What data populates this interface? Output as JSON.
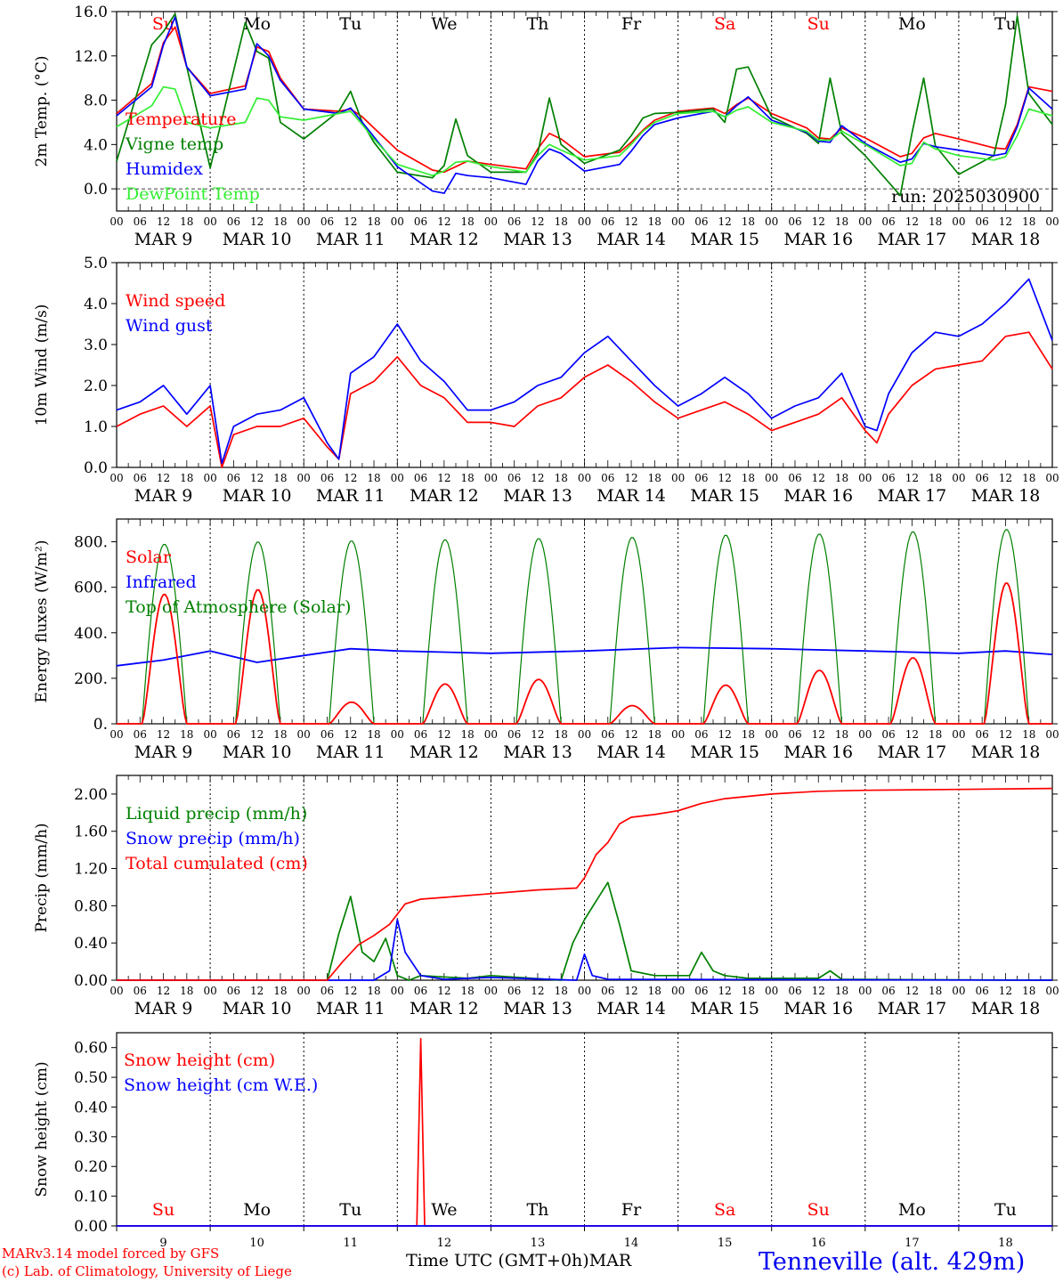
{
  "chart_data": [
    {
      "type": "line",
      "ylabel": "2m Temp. (°C)",
      "ylim": [
        -2,
        16
      ],
      "yticks": [
        "16.0",
        "12.0",
        "8.0",
        "4.0",
        "0.0"
      ],
      "run_label": "run: 2025030900",
      "x_hours": [
        0,
        9,
        12,
        15,
        18,
        24,
        33,
        36,
        39,
        42,
        48,
        57,
        60,
        63,
        66,
        72,
        81,
        84,
        87,
        90,
        96,
        105,
        108,
        111,
        114,
        120,
        129,
        132,
        135,
        138,
        144,
        153,
        156,
        159,
        162,
        168,
        177,
        180,
        183,
        186,
        192,
        201,
        204,
        207,
        210,
        216,
        225,
        228,
        231,
        234,
        240
      ],
      "series": [
        {
          "name": "Temperature",
          "color": "#ff0000",
          "values": [
            6.8,
            9.5,
            13.2,
            14.6,
            11.0,
            8.6,
            9.3,
            12.8,
            12.4,
            10.0,
            7.2,
            7.0,
            7.2,
            6.5,
            5.5,
            3.5,
            1.7,
            1.5,
            2.0,
            2.5,
            2.2,
            1.8,
            3.6,
            5.0,
            4.5,
            2.9,
            3.3,
            4.2,
            5.3,
            6.2,
            7.0,
            7.3,
            6.8,
            7.6,
            8.2,
            6.8,
            5.5,
            4.6,
            4.5,
            5.5,
            4.6,
            2.9,
            3.2,
            4.6,
            5.0,
            4.5,
            3.7,
            3.6,
            5.8,
            9.2,
            8.8
          ]
        },
        {
          "name": "Vigne temp",
          "color": "#008000",
          "values": [
            2.5,
            13.0,
            14.2,
            15.8,
            11.0,
            1.9,
            15.0,
            12.4,
            11.8,
            6.0,
            4.5,
            7.0,
            8.8,
            6.0,
            4.2,
            1.5,
            1.0,
            2.1,
            6.3,
            3.0,
            1.5,
            1.5,
            3.2,
            8.2,
            4.0,
            2.3,
            3.5,
            4.8,
            6.4,
            6.8,
            6.9,
            7.2,
            6.0,
            10.8,
            11.0,
            6.5,
            5.0,
            4.1,
            10.0,
            5.0,
            3.0,
            -0.6,
            5.0,
            10.0,
            3.9,
            1.3,
            3.0,
            7.6,
            15.6,
            8.6,
            5.8
          ]
        },
        {
          "name": "Humidex",
          "color": "#0000ff",
          "values": [
            6.6,
            9.2,
            13.0,
            15.5,
            11.0,
            8.4,
            9.0,
            13.1,
            12.0,
            9.8,
            7.2,
            6.8,
            7.3,
            6.0,
            4.7,
            2.0,
            -0.2,
            -0.4,
            1.4,
            1.2,
            1.0,
            0.4,
            2.5,
            3.6,
            3.2,
            1.6,
            2.2,
            3.4,
            4.8,
            5.8,
            6.4,
            7.0,
            6.5,
            7.5,
            8.3,
            6.2,
            5.1,
            4.3,
            4.2,
            5.7,
            4.1,
            2.4,
            2.7,
            4.1,
            3.8,
            3.5,
            3.0,
            3.2,
            5.6,
            9.1,
            7.2
          ]
        },
        {
          "name": "DewPoint Temp",
          "color": "#33ee33",
          "values": [
            5.6,
            7.5,
            9.2,
            9.0,
            6.0,
            5.5,
            6.0,
            8.2,
            8.0,
            6.5,
            6.2,
            6.8,
            7.0,
            5.8,
            4.5,
            2.2,
            1.2,
            1.6,
            2.4,
            2.5,
            2.0,
            1.5,
            3.0,
            4.0,
            3.5,
            2.6,
            3.0,
            4.0,
            5.2,
            6.0,
            6.8,
            7.0,
            6.5,
            7.1,
            7.4,
            6.0,
            5.2,
            4.4,
            4.4,
            5.2,
            4.0,
            2.1,
            2.3,
            4.2,
            3.6,
            3.0,
            2.6,
            2.9,
            4.8,
            7.2,
            6.6
          ]
        }
      ]
    },
    {
      "type": "line",
      "ylabel": "10m Wind (m/s)",
      "ylim": [
        0,
        5
      ],
      "yticks": [
        "5.0",
        "4.0",
        "3.0",
        "2.0",
        "1.0",
        "0.0"
      ],
      "x_hours": [
        0,
        6,
        12,
        18,
        24,
        27,
        30,
        36,
        42,
        48,
        54,
        57,
        60,
        66,
        72,
        78,
        84,
        90,
        96,
        102,
        108,
        114,
        120,
        126,
        132,
        138,
        144,
        150,
        156,
        162,
        168,
        174,
        180,
        186,
        192,
        195,
        198,
        204,
        210,
        216,
        222,
        228,
        234,
        240
      ],
      "series": [
        {
          "name": "Wind speed",
          "color": "#ff0000",
          "values": [
            1.0,
            1.3,
            1.5,
            1.0,
            1.5,
            0.0,
            0.8,
            1.0,
            1.0,
            1.2,
            0.5,
            0.2,
            1.8,
            2.1,
            2.7,
            2.0,
            1.7,
            1.1,
            1.1,
            1.0,
            1.5,
            1.7,
            2.2,
            2.5,
            2.1,
            1.6,
            1.2,
            1.4,
            1.6,
            1.3,
            0.9,
            1.1,
            1.3,
            1.7,
            0.9,
            0.6,
            1.3,
            2.0,
            2.4,
            2.5,
            2.6,
            3.2,
            3.3,
            2.4
          ]
        },
        {
          "name": "Wind gust",
          "color": "#0000ff",
          "values": [
            1.4,
            1.6,
            2.0,
            1.3,
            2.0,
            0.1,
            1.0,
            1.3,
            1.4,
            1.7,
            0.6,
            0.2,
            2.3,
            2.7,
            3.5,
            2.6,
            2.1,
            1.4,
            1.4,
            1.6,
            2.0,
            2.2,
            2.8,
            3.2,
            2.6,
            2.0,
            1.5,
            1.8,
            2.2,
            1.8,
            1.2,
            1.5,
            1.7,
            2.3,
            1.0,
            0.9,
            1.8,
            2.8,
            3.3,
            3.2,
            3.5,
            4.0,
            4.6,
            3.1
          ]
        }
      ]
    },
    {
      "type": "line",
      "ylabel": "Energy fluxes (W/m²)",
      "ylim": [
        0,
        900
      ],
      "yticks": [
        "800.",
        "600.",
        "400.",
        "200.",
        "0."
      ],
      "sunrise_hour": 6.5,
      "sunset_hour": 18.0,
      "days": [
        {
          "solar_peak": 570,
          "toa_peak": 790
        },
        {
          "solar_peak": 590,
          "toa_peak": 800
        },
        {
          "solar_peak": 95,
          "toa_peak": 805
        },
        {
          "solar_peak": 175,
          "toa_peak": 810
        },
        {
          "solar_peak": 195,
          "toa_peak": 815
        },
        {
          "solar_peak": 80,
          "toa_peak": 820
        },
        {
          "solar_peak": 170,
          "toa_peak": 830
        },
        {
          "solar_peak": 235,
          "toa_peak": 835
        },
        {
          "solar_peak": 290,
          "toa_peak": 845
        },
        {
          "solar_peak": 620,
          "toa_peak": 855
        }
      ],
      "infrared": {
        "x_hours": [
          0,
          12,
          24,
          36,
          48,
          60,
          72,
          96,
          120,
          144,
          168,
          192,
          216,
          228,
          240
        ],
        "values": [
          255,
          280,
          320,
          270,
          300,
          330,
          320,
          310,
          320,
          335,
          330,
          320,
          310,
          320,
          305
        ]
      },
      "series": [
        {
          "name": "Solar",
          "color": "#ff0000"
        },
        {
          "name": "Infrared",
          "color": "#0000ff"
        },
        {
          "name": "Top of Atmosphere (Solar)",
          "color": "#008000"
        }
      ]
    },
    {
      "type": "line",
      "ylabel": "Precip (mm/h)",
      "ylim": [
        0,
        2.2
      ],
      "yticks": [
        "2.00",
        "1.60",
        "1.20",
        "0.80",
        "0.40",
        "0.00"
      ],
      "series": [
        {
          "name": "Liquid precip (mm/h)",
          "color": "#008000",
          "x_hours": [
            0,
            48,
            54,
            57,
            60,
            63,
            66,
            69,
            72,
            75,
            78,
            90,
            96,
            114,
            117,
            120,
            123,
            126,
            129,
            132,
            138,
            144,
            147,
            150,
            153,
            156,
            162,
            168,
            180,
            183,
            186,
            240
          ],
          "values": [
            0,
            0,
            0.0,
            0.5,
            0.9,
            0.3,
            0.2,
            0.45,
            0.05,
            0.0,
            0.05,
            0.02,
            0.05,
            0.0,
            0.4,
            0.65,
            0.85,
            1.05,
            0.6,
            0.1,
            0.05,
            0.05,
            0.05,
            0.3,
            0.1,
            0.05,
            0.02,
            0.02,
            0.02,
            0.1,
            0.01,
            0
          ]
        },
        {
          "name": "Snow precip (mm/h)",
          "color": "#0000ff",
          "x_hours": [
            0,
            66,
            70,
            72,
            74,
            78,
            84,
            96,
            118,
            120,
            122,
            126,
            240
          ],
          "values": [
            0,
            0,
            0.1,
            0.65,
            0.3,
            0.05,
            0.01,
            0.03,
            0.0,
            0.28,
            0.05,
            0.01,
            0
          ]
        },
        {
          "name": "Total cumulated (cm)",
          "color": "#ff0000",
          "x_hours": [
            0,
            54,
            58,
            62,
            66,
            70,
            74,
            78,
            84,
            96,
            108,
            118,
            120,
            123,
            126,
            129,
            132,
            138,
            144,
            150,
            156,
            168,
            180,
            192,
            216,
            240
          ],
          "values": [
            0,
            0,
            0.2,
            0.38,
            0.48,
            0.6,
            0.82,
            0.87,
            0.89,
            0.93,
            0.97,
            0.99,
            1.1,
            1.35,
            1.48,
            1.68,
            1.75,
            1.78,
            1.82,
            1.9,
            1.95,
            2.0,
            2.03,
            2.04,
            2.05,
            2.06
          ]
        }
      ]
    },
    {
      "type": "line",
      "ylabel": "Snow height (cm)",
      "ylim": [
        0,
        0.65
      ],
      "yticks": [
        "0.60",
        "0.50",
        "0.40",
        "0.30",
        "0.20",
        "0.10",
        "0.00"
      ],
      "series": [
        {
          "name": "Snow height (cm)",
          "color": "#ff0000",
          "x_hours": [
            0,
            77,
            78,
            79,
            240
          ],
          "values": [
            0,
            0,
            0.63,
            0,
            0
          ]
        },
        {
          "name": "Snow height (cm W.E.)",
          "color": "#0000ff",
          "x_hours": [
            0,
            240
          ],
          "values": [
            0,
            0
          ]
        }
      ]
    }
  ],
  "days": [
    {
      "weekday": "Su",
      "date": "MAR  9",
      "num": "9",
      "weekend": true
    },
    {
      "weekday": "Mo",
      "date": "MAR 10",
      "num": "10",
      "weekend": false
    },
    {
      "weekday": "Tu",
      "date": "MAR 11",
      "num": "11",
      "weekend": false
    },
    {
      "weekday": "We",
      "date": "MAR 12",
      "num": "12",
      "weekend": false
    },
    {
      "weekday": "Th",
      "date": "MAR 13",
      "num": "13",
      "weekend": false
    },
    {
      "weekday": "Fr",
      "date": "MAR 14",
      "num": "14",
      "weekend": false
    },
    {
      "weekday": "Sa",
      "date": "MAR 15",
      "num": "15",
      "weekend": true
    },
    {
      "weekday": "Su",
      "date": "MAR 16",
      "num": "16",
      "weekend": true
    },
    {
      "weekday": "Mo",
      "date": "MAR 17",
      "num": "17",
      "weekend": false
    },
    {
      "weekday": "Tu",
      "date": "MAR 18",
      "num": "18",
      "weekend": false
    }
  ],
  "hour_ticks": [
    "00",
    "06",
    "12",
    "18"
  ],
  "colors": {
    "weekend": "#ff0000",
    "weekday": "#000000"
  },
  "footer": {
    "credit_line1": "MARv3.14 model forced by GFS",
    "credit_line2": "(c) Lab. of Climatology, University of Liege",
    "xaxis_title": "Time UTC (GMT+0h)MAR",
    "station": "Tenneville (alt. 429m)"
  }
}
